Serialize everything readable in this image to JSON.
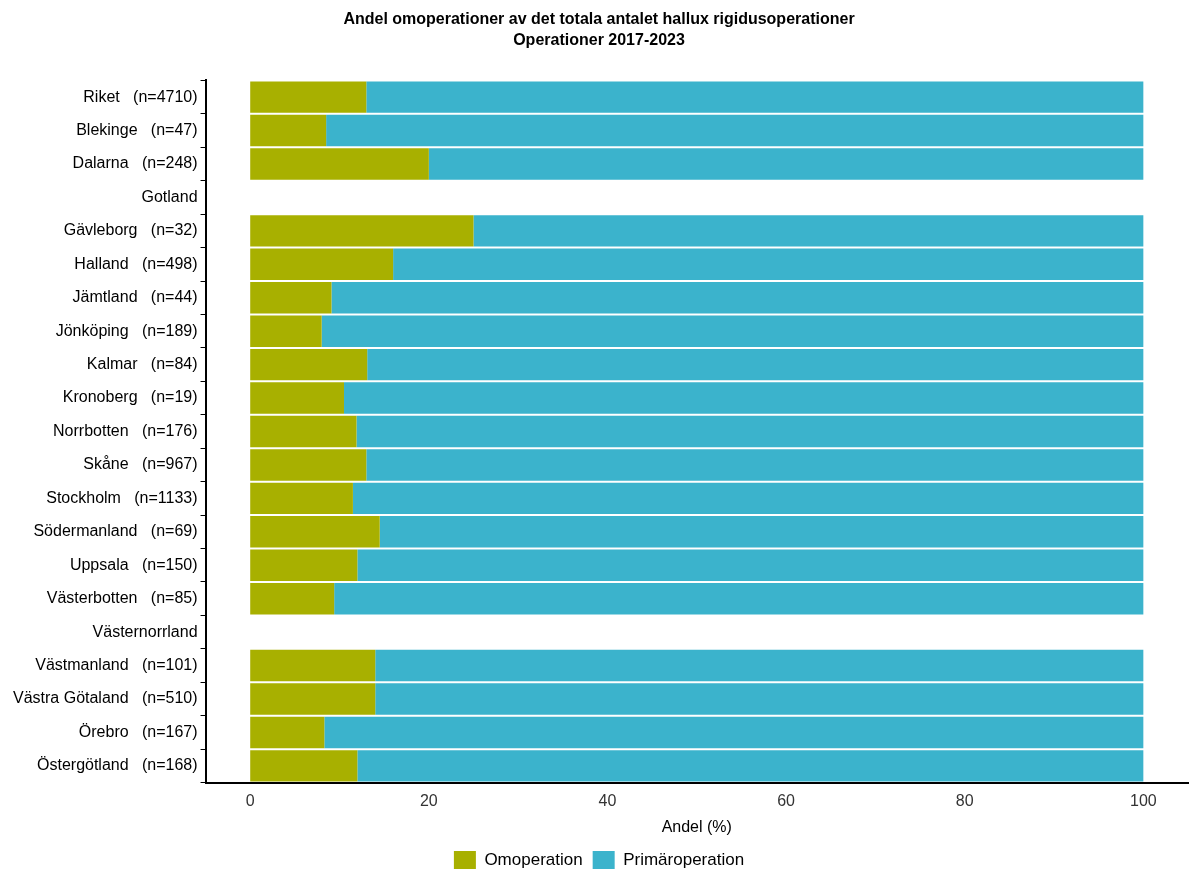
{
  "chart_data": {
    "type": "bar",
    "orientation": "horizontal",
    "stacked": true,
    "title": "Andel omoperationer av det totala antalet hallux rigidusoperationer",
    "subtitle": "Operationer 2017-2023",
    "xlabel": "Andel (%)",
    "categories": [
      "Riket   (n=4710)",
      "Blekinge   (n=47)",
      "Dalarna   (n=248)",
      "Gotland",
      "Gävleborg   (n=32)",
      "Halland   (n=498)",
      "Jämtland   (n=44)",
      "Jönköping   (n=189)",
      "Kalmar   (n=84)",
      "Kronoberg   (n=19)",
      "Norrbotten   (n=176)",
      "Skåne   (n=967)",
      "Stockholm   (n=1133)",
      "Södermanland   (n=69)",
      "Uppsala   (n=150)",
      "Västerbotten   (n=85)",
      "Västernorrland",
      "Västmanland   (n=101)",
      "Västra Götaland   (n=510)",
      "Örebro   (n=167)",
      "Östergötland   (n=168)"
    ],
    "series": [
      {
        "name": "Omoperation",
        "color": "#a8b000",
        "values": [
          13.0,
          8.5,
          20,
          null,
          25,
          16,
          9.1,
          8,
          13.1,
          10.5,
          11.9,
          13,
          11.5,
          14.5,
          12,
          9.4,
          null,
          14,
          14,
          8.3,
          12
        ]
      },
      {
        "name": "Primäroperation",
        "color": "#3bb3cc",
        "values": [
          87.0,
          91.5,
          80,
          null,
          75,
          84,
          90.9,
          92,
          86.9,
          89.5,
          88.1,
          87,
          88.5,
          85.5,
          88,
          90.6,
          null,
          86,
          86,
          91.7,
          88
        ]
      }
    ],
    "xlim": [
      -5,
      105
    ],
    "xticks": [
      0,
      20,
      40,
      60,
      80,
      100
    ],
    "legend": "bottom"
  }
}
